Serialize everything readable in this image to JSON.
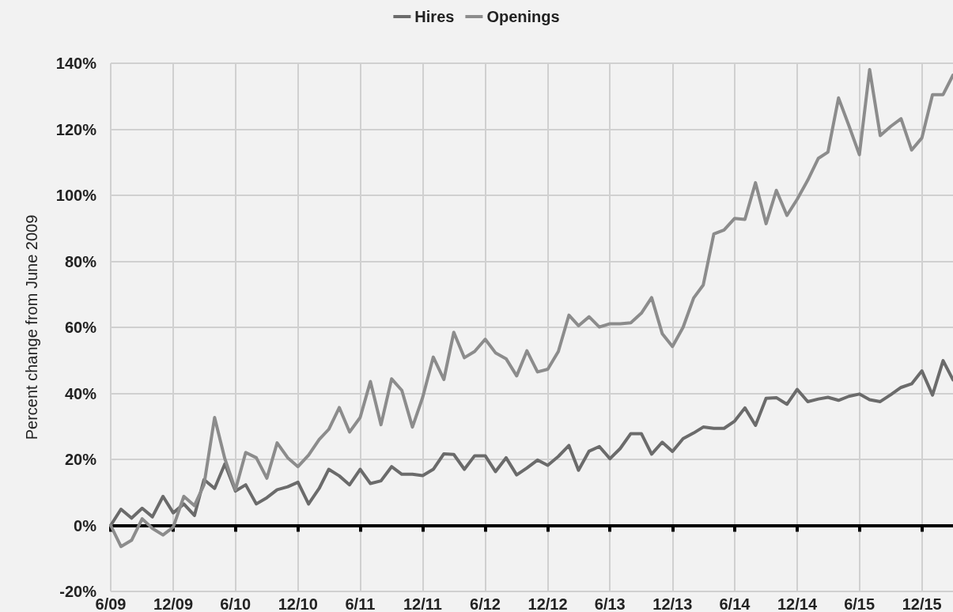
{
  "chart_data": {
    "type": "line",
    "ylabel": "Percent change from June 2009",
    "x": [
      "2009-06",
      "2009-07",
      "2009-08",
      "2009-09",
      "2009-10",
      "2009-11",
      "2009-12",
      "2010-01",
      "2010-02",
      "2010-03",
      "2010-04",
      "2010-05",
      "2010-06",
      "2010-07",
      "2010-08",
      "2010-09",
      "2010-10",
      "2010-11",
      "2010-12",
      "2011-01",
      "2011-02",
      "2011-03",
      "2011-04",
      "2011-05",
      "2011-06",
      "2011-07",
      "2011-08",
      "2011-09",
      "2011-10",
      "2011-11",
      "2011-12",
      "2012-01",
      "2012-02",
      "2012-03",
      "2012-04",
      "2012-05",
      "2012-06",
      "2012-07",
      "2012-08",
      "2012-09",
      "2012-10",
      "2012-11",
      "2012-12",
      "2013-01",
      "2013-02",
      "2013-03",
      "2013-04",
      "2013-05",
      "2013-06",
      "2013-07",
      "2013-08",
      "2013-09",
      "2013-10",
      "2013-11",
      "2013-12",
      "2014-01",
      "2014-02",
      "2014-03",
      "2014-04",
      "2014-05",
      "2014-06",
      "2014-07",
      "2014-08",
      "2014-09",
      "2014-10",
      "2014-11",
      "2014-12",
      "2015-01",
      "2015-02",
      "2015-03",
      "2015-04",
      "2015-05",
      "2015-06",
      "2015-07",
      "2015-08",
      "2015-09",
      "2015-10",
      "2015-11",
      "2015-12",
      "2016-01",
      "2016-02",
      "2016-03"
    ],
    "series": [
      {
        "name": "Hires",
        "color": "#6b6b6b",
        "values": [
          0,
          4.9,
          2.2,
          5.2,
          2.6,
          8.8,
          3.8,
          6.5,
          3,
          13.9,
          11.2,
          18.6,
          10.4,
          12.3,
          6.5,
          8.4,
          10.8,
          11.7,
          13.1,
          6.5,
          11.2,
          17,
          15,
          12.3,
          17,
          12.7,
          13.5,
          17.8,
          15.5,
          15.5,
          15.1,
          17,
          21.7,
          21.5,
          17,
          21.1,
          21.1,
          16.3,
          20.5,
          15.3,
          17.4,
          19.8,
          18.2,
          20.9,
          24.2,
          16.7,
          22.5,
          23.9,
          20.2,
          23.3,
          27.8,
          27.8,
          21.6,
          25.2,
          22.4,
          26.3,
          28,
          29.8,
          29.4,
          29.4,
          31.6,
          35.6,
          30.3,
          38.5,
          38.7,
          36.7,
          41.2,
          37.5,
          38.3,
          38.8,
          37.9,
          39.1,
          39.8,
          38.1,
          37.5,
          39.6,
          41.8,
          42.9,
          46.8,
          39.5,
          49.9,
          44.1
        ]
      },
      {
        "name": "Openings",
        "color": "#8c8c8c",
        "values": [
          0,
          -6.4,
          -4.5,
          2,
          -0.9,
          -2.9,
          -0.5,
          8.8,
          6,
          12.3,
          32.7,
          20.2,
          10.8,
          22.1,
          20.5,
          14.3,
          25,
          20.5,
          17.8,
          21.3,
          26,
          29.1,
          35.7,
          28.3,
          32.7,
          43.6,
          30.5,
          44.4,
          40.9,
          29.8,
          38.8,
          51,
          44.2,
          58.5,
          50.8,
          52.7,
          56.4,
          52.3,
          50.5,
          45.3,
          52.9,
          46.5,
          47.3,
          52.7,
          63.7,
          60.5,
          63.2,
          60.1,
          61.1,
          61.1,
          61.4,
          64.3,
          69,
          58.1,
          54.2,
          60,
          68.9,
          72.8,
          88.3,
          89.5,
          93,
          92.7,
          103.8,
          91.4,
          101.5,
          93.9,
          98.8,
          104.6,
          111.2,
          113.1,
          129.5,
          121.2,
          112.3,
          138.1,
          118.1,
          120.9,
          123.2,
          113.7,
          117.4,
          130.5,
          130.5,
          136.4
        ]
      }
    ],
    "xlim": [
      "2009-06",
      "2016-03"
    ],
    "xticks": [
      {
        "value": "2009-06",
        "label": "6/09"
      },
      {
        "value": "2009-12",
        "label": "12/09"
      },
      {
        "value": "2010-06",
        "label": "6/10"
      },
      {
        "value": "2010-12",
        "label": "12/10"
      },
      {
        "value": "2011-06",
        "label": "6/11"
      },
      {
        "value": "2011-12",
        "label": "12/11"
      },
      {
        "value": "2012-06",
        "label": "6/12"
      },
      {
        "value": "2012-12",
        "label": "12/12"
      },
      {
        "value": "2013-06",
        "label": "6/13"
      },
      {
        "value": "2013-12",
        "label": "12/13"
      },
      {
        "value": "2014-06",
        "label": "6/14"
      },
      {
        "value": "2014-12",
        "label": "12/14"
      },
      {
        "value": "2015-06",
        "label": "6/15"
      },
      {
        "value": "2015-12",
        "label": "12/15"
      }
    ],
    "ylim": [
      -20,
      140
    ],
    "yticks": [
      {
        "value": -20,
        "label": "-20%"
      },
      {
        "value": 0,
        "label": "0%"
      },
      {
        "value": 20,
        "label": "20%"
      },
      {
        "value": 40,
        "label": "40%"
      },
      {
        "value": 60,
        "label": "60%"
      },
      {
        "value": 80,
        "label": "80%"
      },
      {
        "value": 100,
        "label": "100%"
      },
      {
        "value": 120,
        "label": "120%"
      },
      {
        "value": 140,
        "label": "140%"
      }
    ],
    "grid": true,
    "legend": "top",
    "marker": "none",
    "line_style": "solid"
  }
}
